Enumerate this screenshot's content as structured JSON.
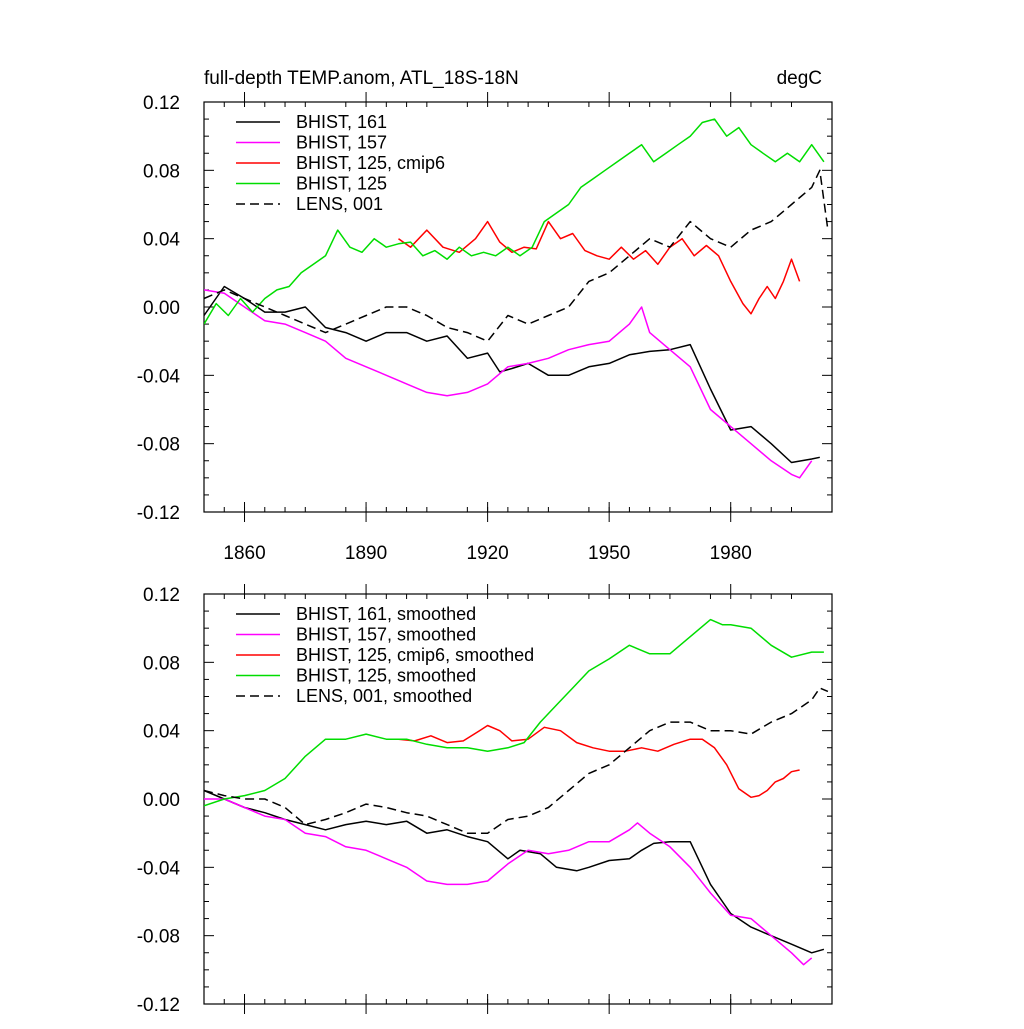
{
  "colors": {
    "bhist_161": "#000000",
    "bhist_157": "#ff00ff",
    "bhist_125_cmip6": "#ff0000",
    "bhist_125": "#00dd00",
    "lens_001": "#000000"
  },
  "chart_data": [
    {
      "type": "line",
      "title": "full-depth TEMP.anom, ATL_18S-18N",
      "units": "degC",
      "xlim": [
        1850,
        2005
      ],
      "ylim": [
        -0.12,
        0.12
      ],
      "x_major_ticks": [
        1860,
        1890,
        1920,
        1950,
        1980
      ],
      "x_tick_labels": [
        "1860",
        "1890",
        "1920",
        "1950",
        "1980"
      ],
      "y_major_ticks": [
        -0.12,
        -0.08,
        -0.04,
        0.0,
        0.04,
        0.08,
        0.12
      ],
      "y_tick_labels": [
        "-0.12",
        "-0.08",
        "-0.04",
        "0.00",
        "0.04",
        "0.08",
        "0.12"
      ],
      "legend_position": "top-left",
      "series": [
        {
          "name": "BHIST, 161",
          "color": "#000000",
          "dash": "solid",
          "x": [
            1850,
            1855,
            1860,
            1865,
            1870,
            1875,
            1880,
            1885,
            1890,
            1895,
            1900,
            1905,
            1910,
            1915,
            1920,
            1923,
            1926,
            1930,
            1935,
            1940,
            1945,
            1950,
            1955,
            1960,
            1965,
            1970,
            1975,
            1980,
            1985,
            1990,
            1995,
            2000,
            2002
          ],
          "y": [
            -0.005,
            0.012,
            0.005,
            -0.003,
            -0.003,
            0.0,
            -0.012,
            -0.015,
            -0.02,
            -0.015,
            -0.015,
            -0.02,
            -0.017,
            -0.03,
            -0.027,
            -0.038,
            -0.036,
            -0.033,
            -0.04,
            -0.04,
            -0.035,
            -0.033,
            -0.028,
            -0.026,
            -0.025,
            -0.022,
            -0.048,
            -0.072,
            -0.07,
            -0.08,
            -0.091,
            -0.089,
            -0.088
          ]
        },
        {
          "name": "BHIST, 157",
          "color": "#ff00ff",
          "dash": "solid",
          "x": [
            1850,
            1855,
            1860,
            1865,
            1870,
            1875,
            1880,
            1885,
            1890,
            1895,
            1900,
            1905,
            1910,
            1915,
            1920,
            1925,
            1930,
            1935,
            1940,
            1945,
            1950,
            1955,
            1958,
            1960,
            1965,
            1970,
            1975,
            1980,
            1985,
            1990,
            1995,
            1997,
            2000
          ],
          "y": [
            0.01,
            0.008,
            0.0,
            -0.008,
            -0.01,
            -0.015,
            -0.02,
            -0.03,
            -0.035,
            -0.04,
            -0.045,
            -0.05,
            -0.052,
            -0.05,
            -0.045,
            -0.035,
            -0.033,
            -0.03,
            -0.025,
            -0.022,
            -0.02,
            -0.01,
            0.0,
            -0.015,
            -0.025,
            -0.035,
            -0.06,
            -0.07,
            -0.08,
            -0.09,
            -0.098,
            -0.1,
            -0.09
          ]
        },
        {
          "name": "BHIST, 125, cmip6",
          "color": "#ff0000",
          "dash": "solid",
          "x": [
            1898,
            1901,
            1905,
            1909,
            1913,
            1917,
            1920,
            1923,
            1926,
            1929,
            1932,
            1935,
            1938,
            1941,
            1944,
            1947,
            1950,
            1953,
            1956,
            1959,
            1962,
            1965,
            1968,
            1971,
            1974,
            1977,
            1980,
            1983,
            1985,
            1987,
            1989,
            1991,
            1993,
            1995,
            1997
          ],
          "y": [
            0.04,
            0.035,
            0.045,
            0.035,
            0.032,
            0.04,
            0.05,
            0.038,
            0.032,
            0.035,
            0.034,
            0.05,
            0.04,
            0.043,
            0.033,
            0.03,
            0.028,
            0.035,
            0.028,
            0.033,
            0.025,
            0.035,
            0.04,
            0.03,
            0.036,
            0.03,
            0.015,
            0.002,
            -0.004,
            0.005,
            0.012,
            0.005,
            0.015,
            0.028,
            0.015
          ]
        },
        {
          "name": "BHIST, 125",
          "color": "#00dd00",
          "dash": "solid",
          "x": [
            1850,
            1853,
            1856,
            1859,
            1862,
            1865,
            1868,
            1871,
            1874,
            1877,
            1880,
            1883,
            1886,
            1889,
            1892,
            1895,
            1898,
            1901,
            1904,
            1907,
            1910,
            1913,
            1916,
            1919,
            1922,
            1925,
            1928,
            1931,
            1934,
            1937,
            1940,
            1943,
            1946,
            1949,
            1952,
            1955,
            1958,
            1961,
            1964,
            1967,
            1970,
            1973,
            1976,
            1979,
            1982,
            1985,
            1988,
            1991,
            1994,
            1997,
            2000,
            2003
          ],
          "y": [
            -0.01,
            0.002,
            -0.005,
            0.005,
            -0.003,
            0.005,
            0.01,
            0.012,
            0.02,
            0.025,
            0.03,
            0.045,
            0.035,
            0.032,
            0.04,
            0.035,
            0.037,
            0.038,
            0.03,
            0.033,
            0.028,
            0.035,
            0.03,
            0.032,
            0.03,
            0.035,
            0.03,
            0.035,
            0.05,
            0.055,
            0.06,
            0.07,
            0.075,
            0.08,
            0.085,
            0.09,
            0.095,
            0.085,
            0.09,
            0.095,
            0.1,
            0.108,
            0.11,
            0.1,
            0.105,
            0.095,
            0.09,
            0.085,
            0.09,
            0.085,
            0.095,
            0.085
          ]
        },
        {
          "name": "LENS, 001",
          "color": "#000000",
          "dash": "dashed",
          "x": [
            1850,
            1855,
            1860,
            1865,
            1870,
            1875,
            1880,
            1885,
            1890,
            1895,
            1900,
            1905,
            1910,
            1915,
            1920,
            1925,
            1930,
            1935,
            1940,
            1945,
            1950,
            1955,
            1960,
            1965,
            1970,
            1975,
            1980,
            1985,
            1990,
            1995,
            2000,
            2002,
            2004
          ],
          "y": [
            0.005,
            0.01,
            0.005,
            0.0,
            -0.005,
            -0.01,
            -0.015,
            -0.01,
            -0.005,
            0.0,
            0.0,
            -0.005,
            -0.012,
            -0.015,
            -0.02,
            -0.005,
            -0.01,
            -0.005,
            0.0,
            0.015,
            0.02,
            0.03,
            0.04,
            0.035,
            0.05,
            0.04,
            0.035,
            0.045,
            0.05,
            0.06,
            0.07,
            0.08,
            0.045
          ]
        }
      ]
    },
    {
      "type": "line",
      "title": "",
      "xlim": [
        1850,
        2005
      ],
      "ylim": [
        -0.12,
        0.12
      ],
      "x_major_ticks": [
        1860,
        1890,
        1920,
        1950,
        1980
      ],
      "y_major_ticks": [
        -0.12,
        -0.08,
        -0.04,
        0.0,
        0.04,
        0.08,
        0.12
      ],
      "y_tick_labels": [
        "-0.12",
        "-0.08",
        "-0.04",
        "0.00",
        "0.04",
        "0.08",
        "0.12"
      ],
      "legend_position": "top-left",
      "series": [
        {
          "name": "BHIST, 161, smoothed",
          "color": "#000000",
          "dash": "solid",
          "x": [
            1850,
            1855,
            1860,
            1865,
            1870,
            1875,
            1880,
            1885,
            1890,
            1895,
            1900,
            1905,
            1910,
            1915,
            1920,
            1925,
            1928,
            1933,
            1937,
            1942,
            1945,
            1950,
            1955,
            1958,
            1961,
            1965,
            1970,
            1975,
            1980,
            1985,
            1990,
            1995,
            2000,
            2003
          ],
          "y": [
            0.005,
            0.0,
            -0.005,
            -0.008,
            -0.012,
            -0.015,
            -0.018,
            -0.015,
            -0.013,
            -0.015,
            -0.013,
            -0.02,
            -0.018,
            -0.022,
            -0.025,
            -0.035,
            -0.03,
            -0.032,
            -0.04,
            -0.042,
            -0.04,
            -0.036,
            -0.035,
            -0.03,
            -0.026,
            -0.025,
            -0.025,
            -0.05,
            -0.067,
            -0.075,
            -0.08,
            -0.085,
            -0.09,
            -0.088
          ]
        },
        {
          "name": "BHIST, 157, smoothed",
          "color": "#ff00ff",
          "dash": "solid",
          "x": [
            1850,
            1855,
            1860,
            1865,
            1870,
            1875,
            1880,
            1885,
            1890,
            1895,
            1900,
            1905,
            1910,
            1915,
            1920,
            1925,
            1930,
            1935,
            1940,
            1945,
            1950,
            1955,
            1957,
            1960,
            1965,
            1970,
            1975,
            1980,
            1985,
            1990,
            1995,
            1998,
            2000
          ],
          "y": [
            0.0,
            0.0,
            -0.005,
            -0.01,
            -0.012,
            -0.02,
            -0.022,
            -0.028,
            -0.03,
            -0.035,
            -0.04,
            -0.048,
            -0.05,
            -0.05,
            -0.048,
            -0.038,
            -0.03,
            -0.032,
            -0.03,
            -0.025,
            -0.025,
            -0.018,
            -0.014,
            -0.02,
            -0.028,
            -0.04,
            -0.055,
            -0.068,
            -0.07,
            -0.08,
            -0.09,
            -0.097,
            -0.093
          ]
        },
        {
          "name": "BHIST, 125, cmip6, smoothed",
          "color": "#ff0000",
          "dash": "solid",
          "x": [
            1898,
            1902,
            1906,
            1910,
            1914,
            1918,
            1920,
            1923,
            1926,
            1930,
            1934,
            1938,
            1942,
            1946,
            1950,
            1954,
            1958,
            1962,
            1966,
            1970,
            1973,
            1976,
            1979,
            1982,
            1985,
            1987,
            1989,
            1991,
            1993,
            1995,
            1997
          ],
          "y": [
            0.035,
            0.034,
            0.037,
            0.033,
            0.034,
            0.04,
            0.043,
            0.04,
            0.034,
            0.035,
            0.042,
            0.04,
            0.033,
            0.03,
            0.028,
            0.028,
            0.03,
            0.028,
            0.032,
            0.035,
            0.035,
            0.03,
            0.02,
            0.006,
            0.001,
            0.002,
            0.005,
            0.01,
            0.012,
            0.016,
            0.017
          ]
        },
        {
          "name": "BHIST, 125, smoothed",
          "color": "#00dd00",
          "dash": "solid",
          "x": [
            1850,
            1855,
            1860,
            1865,
            1870,
            1875,
            1880,
            1885,
            1890,
            1895,
            1900,
            1905,
            1910,
            1915,
            1920,
            1925,
            1929,
            1933,
            1937,
            1941,
            1945,
            1950,
            1955,
            1960,
            1965,
            1970,
            1975,
            1978,
            1980,
            1985,
            1990,
            1995,
            2000,
            2003
          ],
          "y": [
            -0.004,
            0.0,
            0.002,
            0.005,
            0.012,
            0.025,
            0.035,
            0.035,
            0.038,
            0.035,
            0.035,
            0.032,
            0.03,
            0.03,
            0.028,
            0.03,
            0.033,
            0.045,
            0.055,
            0.065,
            0.075,
            0.082,
            0.09,
            0.085,
            0.085,
            0.095,
            0.105,
            0.102,
            0.102,
            0.1,
            0.09,
            0.083,
            0.086,
            0.086
          ]
        },
        {
          "name": "LENS, 001, smoothed",
          "color": "#000000",
          "dash": "dashed",
          "x": [
            1850,
            1855,
            1860,
            1865,
            1870,
            1875,
            1880,
            1885,
            1890,
            1895,
            1900,
            1905,
            1910,
            1915,
            1920,
            1925,
            1930,
            1935,
            1940,
            1945,
            1950,
            1955,
            1960,
            1965,
            1970,
            1975,
            1980,
            1985,
            1990,
            1995,
            2000,
            2002,
            2004
          ],
          "y": [
            0.005,
            0.002,
            0.0,
            0.0,
            -0.005,
            -0.015,
            -0.012,
            -0.008,
            -0.003,
            -0.005,
            -0.008,
            -0.01,
            -0.015,
            -0.02,
            -0.02,
            -0.012,
            -0.01,
            -0.005,
            0.005,
            0.015,
            0.02,
            0.03,
            0.04,
            0.045,
            0.045,
            0.04,
            0.04,
            0.038,
            0.045,
            0.05,
            0.058,
            0.065,
            0.063
          ]
        }
      ]
    }
  ]
}
